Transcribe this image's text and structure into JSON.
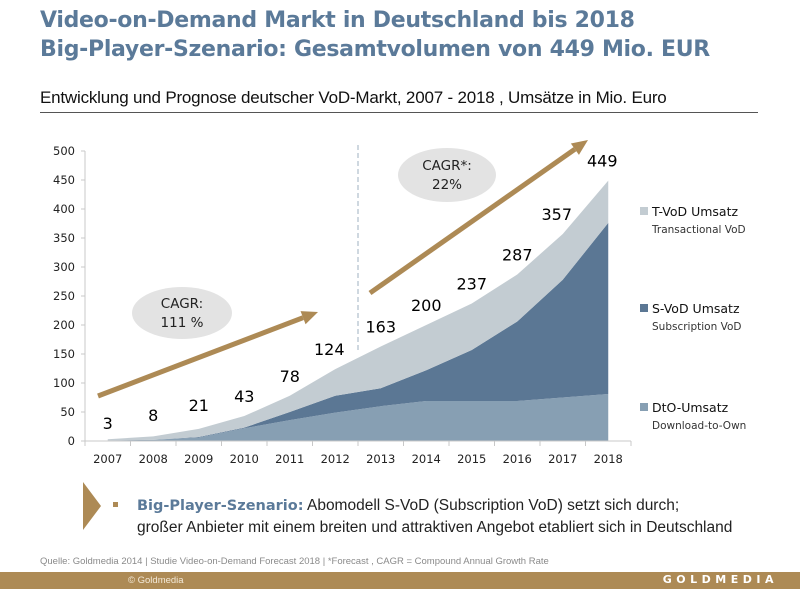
{
  "header": {
    "title_line1": "Video-on-Demand Markt in Deutschland bis 2018",
    "title_line2": "Big-Player-Szenario: Gesamtvolumen von 449 Mio. EUR",
    "subtitle": "Entwicklung und Prognose deutscher VoD-Markt, 2007 - 2018 , Umsätze  in Mio. Euro"
  },
  "colors": {
    "title": "#5b7a99",
    "tvod": "#c3ccd2",
    "svod": "#5b7794",
    "dto": "#879fb3",
    "accent_gold": "#ad8a55",
    "cagr_bubble": "#e3e3e3"
  },
  "chart_data": {
    "type": "area",
    "stacked": true,
    "title": "Entwicklung und Prognose deutscher VoD-Markt, 2007 - 2018 , Umsätze  in Mio. Euro",
    "xlabel": "",
    "ylabel": "",
    "ylim": [
      0,
      500
    ],
    "yticks": [
      0,
      50,
      100,
      150,
      200,
      250,
      300,
      350,
      400,
      450,
      500
    ],
    "categories": [
      "2007",
      "2008",
      "2009",
      "2010",
      "2011",
      "2012",
      "2013",
      "2014",
      "2015",
      "2016",
      "2017",
      "2018"
    ],
    "series": [
      {
        "name": "DtO-Umsatz",
        "subtitle": "Download-to-Own",
        "color_key": "dto",
        "values": [
          1,
          2,
          6,
          22,
          36,
          49,
          60,
          69,
          69,
          69,
          75,
          81
        ]
      },
      {
        "name": "S-VoD Umsatz",
        "subtitle": "Subscription VoD",
        "color_key": "svod",
        "values": [
          0,
          0,
          1,
          1,
          14,
          29,
          31,
          53,
          88,
          137,
          203,
          295
        ]
      },
      {
        "name": "T-VoD Umsatz",
        "subtitle": "Transactional VoD",
        "color_key": "tvod",
        "values": [
          2,
          6,
          14,
          20,
          28,
          46,
          72,
          78,
          80,
          81,
          79,
          73
        ]
      }
    ],
    "totals": [
      3,
      8,
      21,
      43,
      78,
      124,
      163,
      200,
      237,
      287,
      357,
      449
    ],
    "total_labels": [
      "3",
      "8",
      "21",
      "43",
      "78",
      "124",
      "163",
      "200",
      "237",
      "287",
      "357",
      "449"
    ],
    "forecast_divider_after": "2012",
    "annotations": [
      {
        "text_line1": "CAGR:",
        "text_line2": "111 %",
        "period": "2007-2012"
      },
      {
        "text_line1": "CAGR*:",
        "text_line2": "22%",
        "period": "2013-2018"
      }
    ],
    "legend": "right",
    "grid": false
  },
  "legend": [
    {
      "label": "T-VoD Umsatz",
      "sub": "Transactional VoD"
    },
    {
      "label": "S-VoD Umsatz",
      "sub": "Subscription VoD"
    },
    {
      "label": "DtO-Umsatz",
      "sub": "Download-to-Own"
    }
  ],
  "bullet": {
    "bold": "Big-Player-Szenario:",
    "line1": " Abomodell S-VoD (Subscription VoD) setzt sich durch;",
    "line2": "großer Anbieter mit einem breiten und attraktiven Angebot etabliert sich in Deutschland"
  },
  "footer": {
    "source": "Quelle: Goldmedia  2014 | Studie Video-on-Demand Forecast 2018 | *Forecast , CAGR = Compound Annual Growth Rate",
    "copyright": "© Goldmedia",
    "brand": "GOLDMEDIA"
  }
}
